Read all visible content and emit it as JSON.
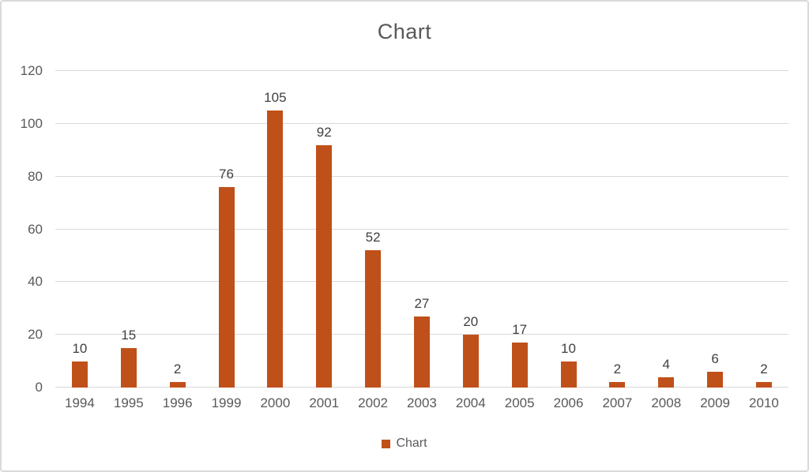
{
  "title": "Chart",
  "legend": {
    "label": "Chart"
  },
  "colors": {
    "bar": "#C0501A",
    "gridline": "#D9D9D9",
    "axis_text": "#595959",
    "data_label_text": "#404040",
    "border": "#DADADA"
  },
  "chart_data": {
    "type": "bar",
    "title": "Chart",
    "series_name": "Chart",
    "categories": [
      "1994",
      "1995",
      "1996",
      "1999",
      "2000",
      "2001",
      "2002",
      "2003",
      "2004",
      "2005",
      "2006",
      "2007",
      "2008",
      "2009",
      "2010"
    ],
    "values": [
      10,
      15,
      2,
      76,
      105,
      92,
      52,
      27,
      20,
      17,
      10,
      2,
      4,
      6,
      2
    ],
    "data_labels_visible": true,
    "xlabel": "",
    "ylabel": "",
    "ylim": [
      0,
      120
    ],
    "yticks": [
      0,
      20,
      40,
      60,
      80,
      100,
      120
    ],
    "grid": true,
    "legend_position": "bottom"
  }
}
